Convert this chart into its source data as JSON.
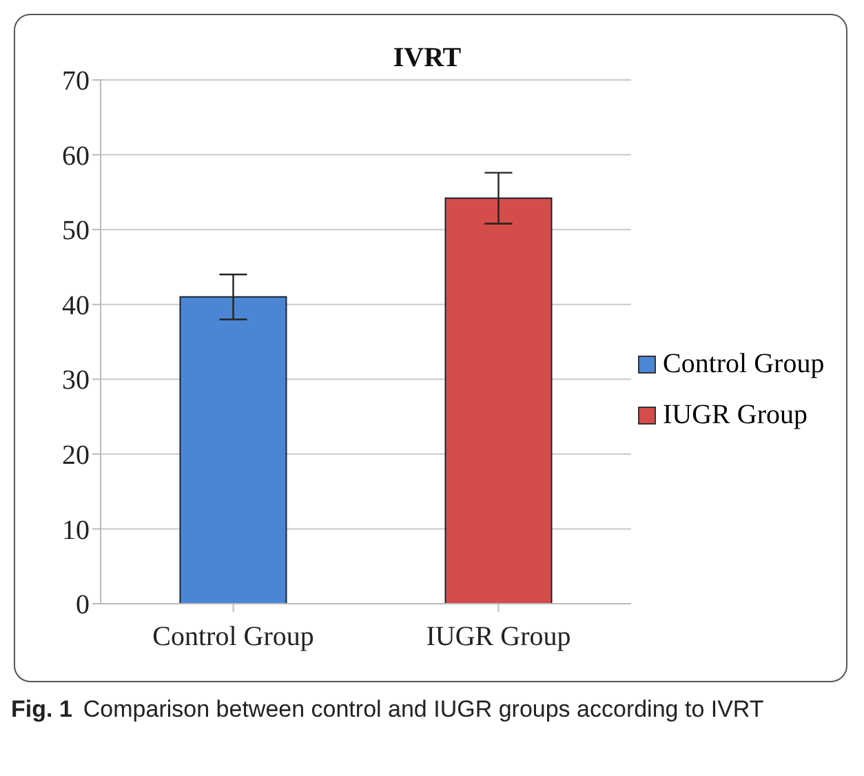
{
  "chart_data": {
    "type": "bar",
    "title": "IVRT",
    "categories": [
      "Control Group",
      "IUGR Group"
    ],
    "series": [
      {
        "name": "Control Group",
        "color": "#4a86d4",
        "values": [
          41,
          null
        ],
        "errors": [
          3,
          null
        ]
      },
      {
        "name": "IUGR Group",
        "color": "#d44d4b",
        "values": [
          null,
          54.2
        ],
        "errors": [
          null,
          3.4
        ]
      }
    ],
    "ylim": [
      0,
      70
    ],
    "yticks": [
      0,
      10,
      20,
      30,
      40,
      50,
      60,
      70
    ],
    "grid": "y",
    "legend": "right",
    "annotations": [
      "Fig. 1",
      "Comparison between control and IUGR groups according to IVRT"
    ]
  }
}
